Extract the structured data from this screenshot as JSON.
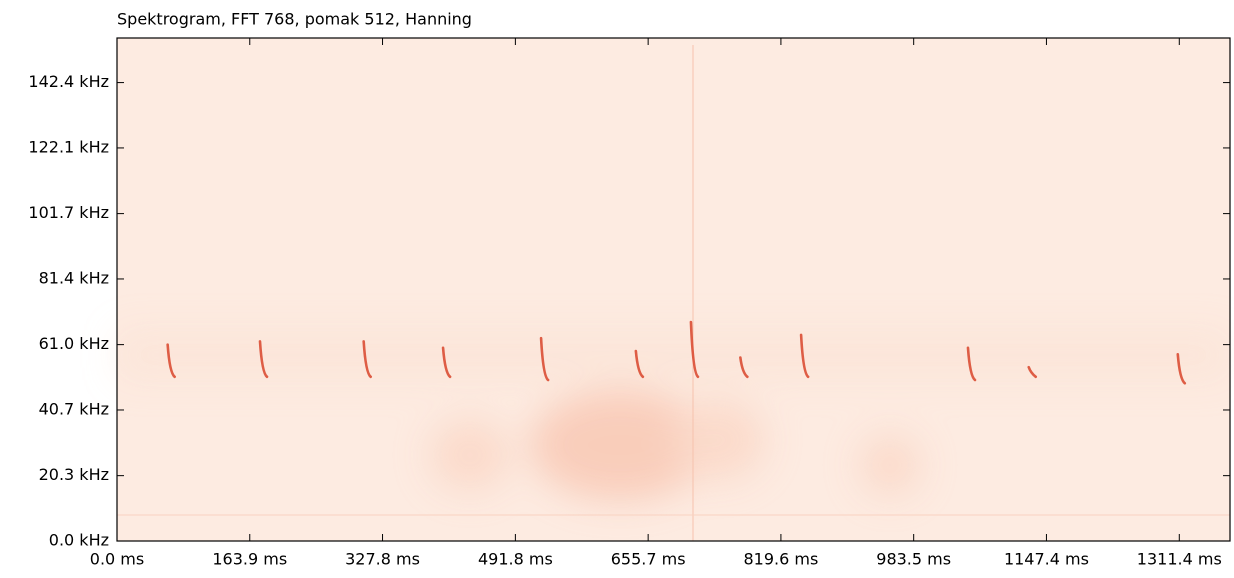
{
  "chart_data": {
    "type": "spectrogram",
    "title": "Spektrogram, FFT 768, pomak 512, Hanning",
    "background_color": "#fdebe1",
    "color": "#d8442a",
    "xlim": [
      0,
      1374
    ],
    "ylim": [
      0,
      156.25
    ],
    "xticks": [
      {
        "value": 0,
        "label": "0.0 ms"
      },
      {
        "value": 163.9,
        "label": "163.9 ms"
      },
      {
        "value": 327.8,
        "label": "327.8 ms"
      },
      {
        "value": 491.8,
        "label": "491.8 ms"
      },
      {
        "value": 655.7,
        "label": "655.7 ms"
      },
      {
        "value": 819.6,
        "label": "819.6 ms"
      },
      {
        "value": 983.5,
        "label": "983.5 ms"
      },
      {
        "value": 1147.4,
        "label": "1147.4 ms"
      },
      {
        "value": 1311.4,
        "label": "1311.4 ms"
      }
    ],
    "yticks": [
      {
        "value": 0,
        "label": "0.0 kHz"
      },
      {
        "value": 20.3,
        "label": "20.3 kHz"
      },
      {
        "value": 40.7,
        "label": "40.7 kHz"
      },
      {
        "value": 61.0,
        "label": "61.0 kHz"
      },
      {
        "value": 81.4,
        "label": "81.4 kHz"
      },
      {
        "value": 101.7,
        "label": "101.7 kHz"
      },
      {
        "value": 122.1,
        "label": "122.1 kHz"
      },
      {
        "value": 142.4,
        "label": "142.4 kHz"
      }
    ],
    "calls": [
      {
        "time": 65,
        "f_start": 61,
        "f_end": 51
      },
      {
        "time": 179,
        "f_start": 62,
        "f_end": 51
      },
      {
        "time": 307,
        "f_start": 62,
        "f_end": 51
      },
      {
        "time": 405,
        "f_start": 60,
        "f_end": 51
      },
      {
        "time": 526,
        "f_start": 63,
        "f_end": 50
      },
      {
        "time": 643,
        "f_start": 59,
        "f_end": 51
      },
      {
        "time": 711,
        "f_start": 68,
        "f_end": 51
      },
      {
        "time": 772,
        "f_start": 57,
        "f_end": 51
      },
      {
        "time": 847,
        "f_start": 64,
        "f_end": 51
      },
      {
        "time": 1053,
        "f_start": 60,
        "f_end": 50
      },
      {
        "time": 1128,
        "f_start": 54,
        "f_end": 51
      },
      {
        "time": 1312,
        "f_start": 58,
        "f_end": 49
      }
    ]
  }
}
